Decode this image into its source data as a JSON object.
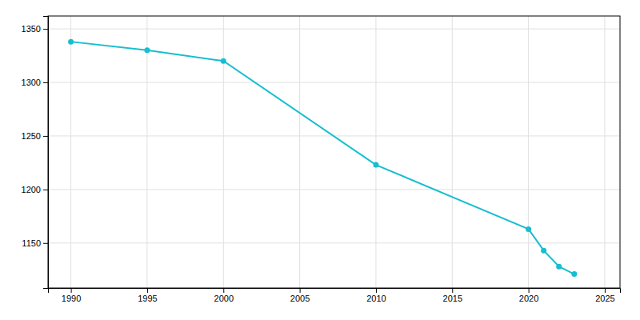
{
  "chart_data": {
    "type": "line",
    "x": [
      1990,
      1995,
      2000,
      2010,
      2020,
      2021,
      2022,
      2023
    ],
    "values": [
      1338,
      1330,
      1320,
      1223,
      1163,
      1143,
      1128,
      1121
    ],
    "color": "#17BECF",
    "marker": "circle",
    "xlim": [
      1988.5,
      2026
    ],
    "ylim": [
      1108,
      1362
    ],
    "xticks": [
      1990,
      1995,
      2000,
      2005,
      2010,
      2015,
      2020,
      2025
    ],
    "yticks": [
      1150,
      1200,
      1250,
      1300,
      1350
    ],
    "grid": true
  }
}
